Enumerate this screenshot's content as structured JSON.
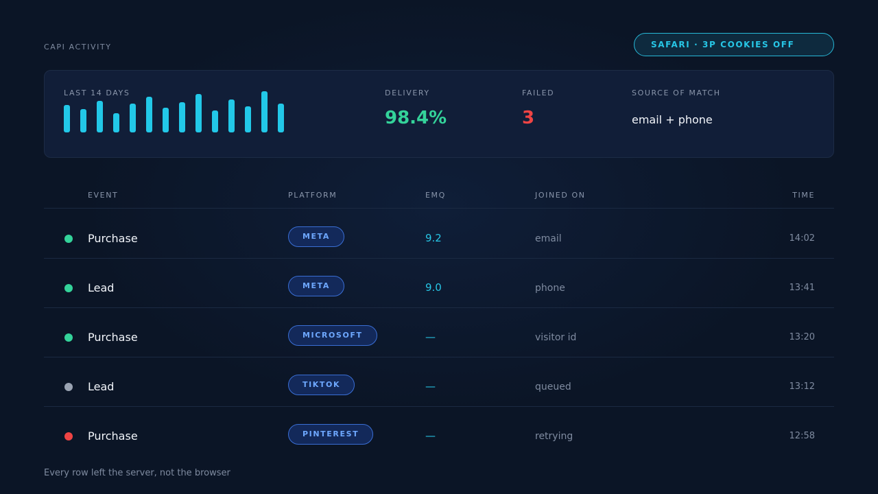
{
  "header": {
    "title": "CAPI ACTIVITY",
    "badge": "SAFARI · 3P COOKIES OFF"
  },
  "summary": {
    "range_label": "LAST 14 DAYS",
    "spark_values": [
      40,
      34,
      46,
      28,
      42,
      52,
      36,
      44,
      56,
      32,
      48,
      38,
      60,
      42
    ],
    "delivery_label": "DELIVERY",
    "delivery_value": "98.4%",
    "failed_label": "FAILED",
    "failed_value": "3",
    "source_label": "SOURCE OF MATCH",
    "source_value": "email + phone"
  },
  "table": {
    "headers": {
      "event": "EVENT",
      "platform": "PLATFORM",
      "emq": "EMQ",
      "joined": "JOINED ON",
      "time": "TIME"
    },
    "rows": [
      {
        "status": "ok",
        "event": "Purchase",
        "platform": "META",
        "emq": "9.2",
        "joined": "email",
        "time": "14:02"
      },
      {
        "status": "ok",
        "event": "Lead",
        "platform": "META",
        "emq": "9.0",
        "joined": "phone",
        "time": "13:41"
      },
      {
        "status": "ok",
        "event": "Purchase",
        "platform": "MICROSOFT",
        "emq": "—",
        "joined": "visitor id",
        "time": "13:20"
      },
      {
        "status": "queued",
        "event": "Lead",
        "platform": "TIKTOK",
        "emq": "—",
        "joined": "queued",
        "time": "13:12"
      },
      {
        "status": "failed",
        "event": "Purchase",
        "platform": "PINTEREST",
        "emq": "—",
        "joined": "retrying",
        "time": "12:58"
      }
    ]
  },
  "status_colors": {
    "ok": "#34d39a",
    "queued": "#9aa3b2",
    "failed": "#ef4444"
  },
  "footer": "Every row left the server, not the browser"
}
